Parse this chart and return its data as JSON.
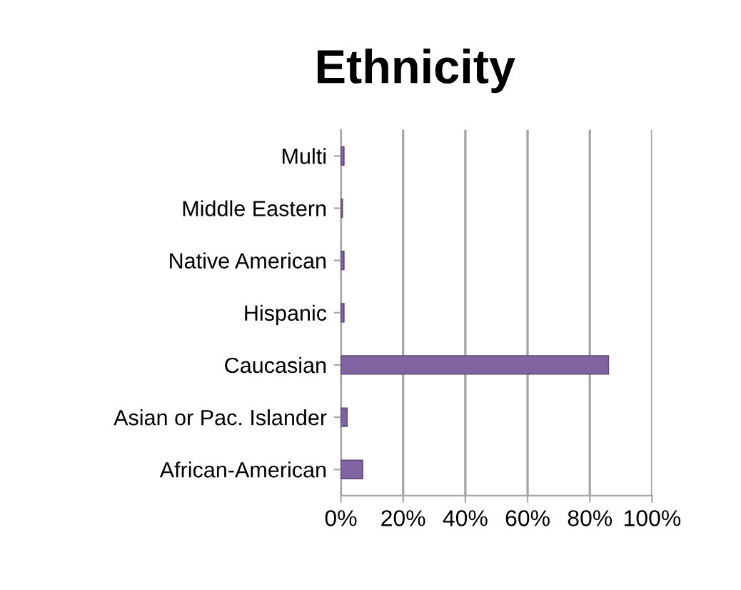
{
  "chart_data": {
    "type": "bar",
    "orientation": "horizontal",
    "title": "Ethnicity",
    "categories": [
      "Multi",
      "Middle Eastern",
      "Native American",
      "Hispanic",
      "Caucasian",
      "Asian or Pac. Islander",
      "African-American"
    ],
    "values": [
      1,
      0.5,
      1,
      1,
      86,
      2,
      7
    ],
    "color": "#8064a2",
    "xlim": [
      0,
      100
    ],
    "xticks": [
      {
        "value": 0,
        "label": "0%"
      },
      {
        "value": 20,
        "label": "20%"
      },
      {
        "value": 40,
        "label": "40%"
      },
      {
        "value": 60,
        "label": "60%"
      },
      {
        "value": 80,
        "label": "80%"
      },
      {
        "value": 100,
        "label": "100%"
      }
    ],
    "grid": "x",
    "legend": false
  }
}
